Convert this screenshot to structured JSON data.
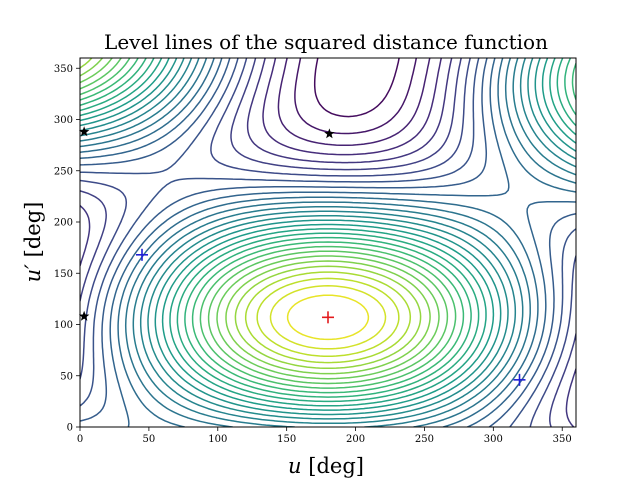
{
  "chart_data": {
    "type": "contour",
    "title": "Level lines of the squared distance function",
    "xlabel": {
      "var": "u",
      "unit": "[deg]"
    },
    "ylabel": {
      "var": "u′",
      "unit": "[deg]"
    },
    "xlim": [
      0,
      360
    ],
    "ylim": [
      0,
      360
    ],
    "xticks": [
      0,
      50,
      100,
      150,
      200,
      250,
      300,
      350
    ],
    "yticks": [
      0,
      50,
      100,
      150,
      200,
      250,
      300,
      350
    ],
    "colormap": "viridis",
    "levels": 30,
    "contour_params": {
      "a": 1.0,
      "b": 1.15,
      "tilt_deg": 40,
      "skew": 0.45,
      "period_deg": 360
    },
    "markers": {
      "minimum": [
        {
          "x": 180,
          "y": 107,
          "symbol": "+",
          "color": "#e31a1c"
        }
      ],
      "local_points": [
        {
          "x": 45,
          "y": 168,
          "symbol": "+",
          "color": "#1f1fd6"
        },
        {
          "x": 319,
          "y": 46,
          "symbol": "+",
          "color": "#1f1fd6"
        }
      ],
      "saddles": [
        {
          "x": 3,
          "y": 288,
          "symbol": "star",
          "color": "#000000"
        },
        {
          "x": 181,
          "y": 286,
          "symbol": "star",
          "color": "#000000"
        },
        {
          "x": 3,
          "y": 108,
          "symbol": "star",
          "color": "#000000"
        }
      ]
    }
  }
}
